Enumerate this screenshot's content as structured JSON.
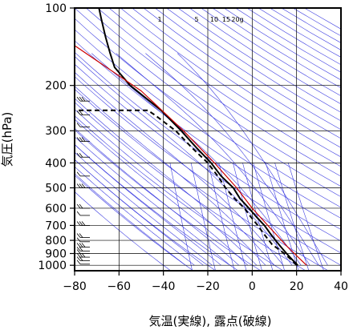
{
  "chart_data": {
    "type": "line",
    "subtype": "emagram",
    "xlabel": "気温(実線), 露点(破線)",
    "ylabel": "気圧(hPa)",
    "xlim": [
      -80,
      40
    ],
    "ylim": [
      1050,
      100
    ],
    "y_scale": "log",
    "grid": true,
    "x_ticks": [
      "−80",
      "−60",
      "−40",
      "−20",
      "0",
      "20",
      "40"
    ],
    "y_ticks": [
      "100",
      "200",
      "300",
      "400",
      "500",
      "600",
      "700",
      "800",
      "900",
      "1000"
    ],
    "mixing_ratio_labels": [
      "1",
      "5",
      "10",
      "15",
      "20g"
    ],
    "series": [
      {
        "role": "temperature",
        "style": "solid",
        "color": "#000000",
        "points": [
          {
            "t": 20.5,
            "p": 1000
          },
          {
            "t": 18.0,
            "p": 950
          },
          {
            "t": 15.5,
            "p": 900
          },
          {
            "t": 13.0,
            "p": 850
          },
          {
            "t": 10.5,
            "p": 800
          },
          {
            "t": 8.0,
            "p": 750
          },
          {
            "t": 5.5,
            "p": 700
          },
          {
            "t": 2.0,
            "p": 650
          },
          {
            "t": -1.5,
            "p": 600
          },
          {
            "t": -5.5,
            "p": 550
          },
          {
            "t": -8.5,
            "p": 500
          },
          {
            "t": -14.0,
            "p": 450
          },
          {
            "t": -18.5,
            "p": 400
          },
          {
            "t": -25.0,
            "p": 350
          },
          {
            "t": -32.0,
            "p": 300
          },
          {
            "t": -41.0,
            "p": 250
          },
          {
            "t": -55.0,
            "p": 200
          },
          {
            "t": -62.0,
            "p": 170
          },
          {
            "t": -64.0,
            "p": 150
          },
          {
            "t": -66.0,
            "p": 130
          },
          {
            "t": -67.0,
            "p": 120
          },
          {
            "t": -68.0,
            "p": 110
          },
          {
            "t": -68.5,
            "p": 105
          },
          {
            "t": -69.0,
            "p": 100
          }
        ]
      },
      {
        "role": "dewpoint",
        "style": "dashed",
        "color": "#000000",
        "points": [
          {
            "t": 20.0,
            "p": 1000
          },
          {
            "t": 17.5,
            "p": 950
          },
          {
            "t": 14.5,
            "p": 900
          },
          {
            "t": 9.0,
            "p": 830
          },
          {
            "t": 7.5,
            "p": 800
          },
          {
            "t": 5.0,
            "p": 750
          },
          {
            "t": 2.5,
            "p": 700
          },
          {
            "t": -0.5,
            "p": 650
          },
          {
            "t": -3.5,
            "p": 600
          },
          {
            "t": -8.0,
            "p": 550
          },
          {
            "t": -12.0,
            "p": 500
          },
          {
            "t": -15.5,
            "p": 450
          },
          {
            "t": -20.0,
            "p": 400
          },
          {
            "t": -27.0,
            "p": 350
          },
          {
            "t": -34.5,
            "p": 300
          },
          {
            "t": -44.0,
            "p": 260
          },
          {
            "t": -47.0,
            "p": 250
          },
          {
            "t": -80.0,
            "p": 250
          }
        ]
      },
      {
        "role": "parcel",
        "style": "solid",
        "color": "#cc0000",
        "points": [
          {
            "t": 24.5,
            "p": 1000
          },
          {
            "t": 16.0,
            "p": 850
          },
          {
            "t": 7.0,
            "p": 700
          },
          {
            "t": 0.0,
            "p": 600
          },
          {
            "t": -7.0,
            "p": 500
          },
          {
            "t": -17.0,
            "p": 400
          },
          {
            "t": -31.0,
            "p": 300
          },
          {
            "t": -50.0,
            "p": 210
          },
          {
            "t": -80.0,
            "p": 140
          }
        ]
      }
    ],
    "wind_barbs": {
      "count": 18,
      "pressures": [
        990,
        960,
        930,
        900,
        880,
        850,
        810,
        780,
        700,
        640,
        600,
        500,
        450,
        380,
        330,
        290,
        260,
        230
      ]
    },
    "colors": {
      "grid": "#000000",
      "background_lines": "#3a3ae0",
      "parcel": "#cc0000"
    }
  }
}
